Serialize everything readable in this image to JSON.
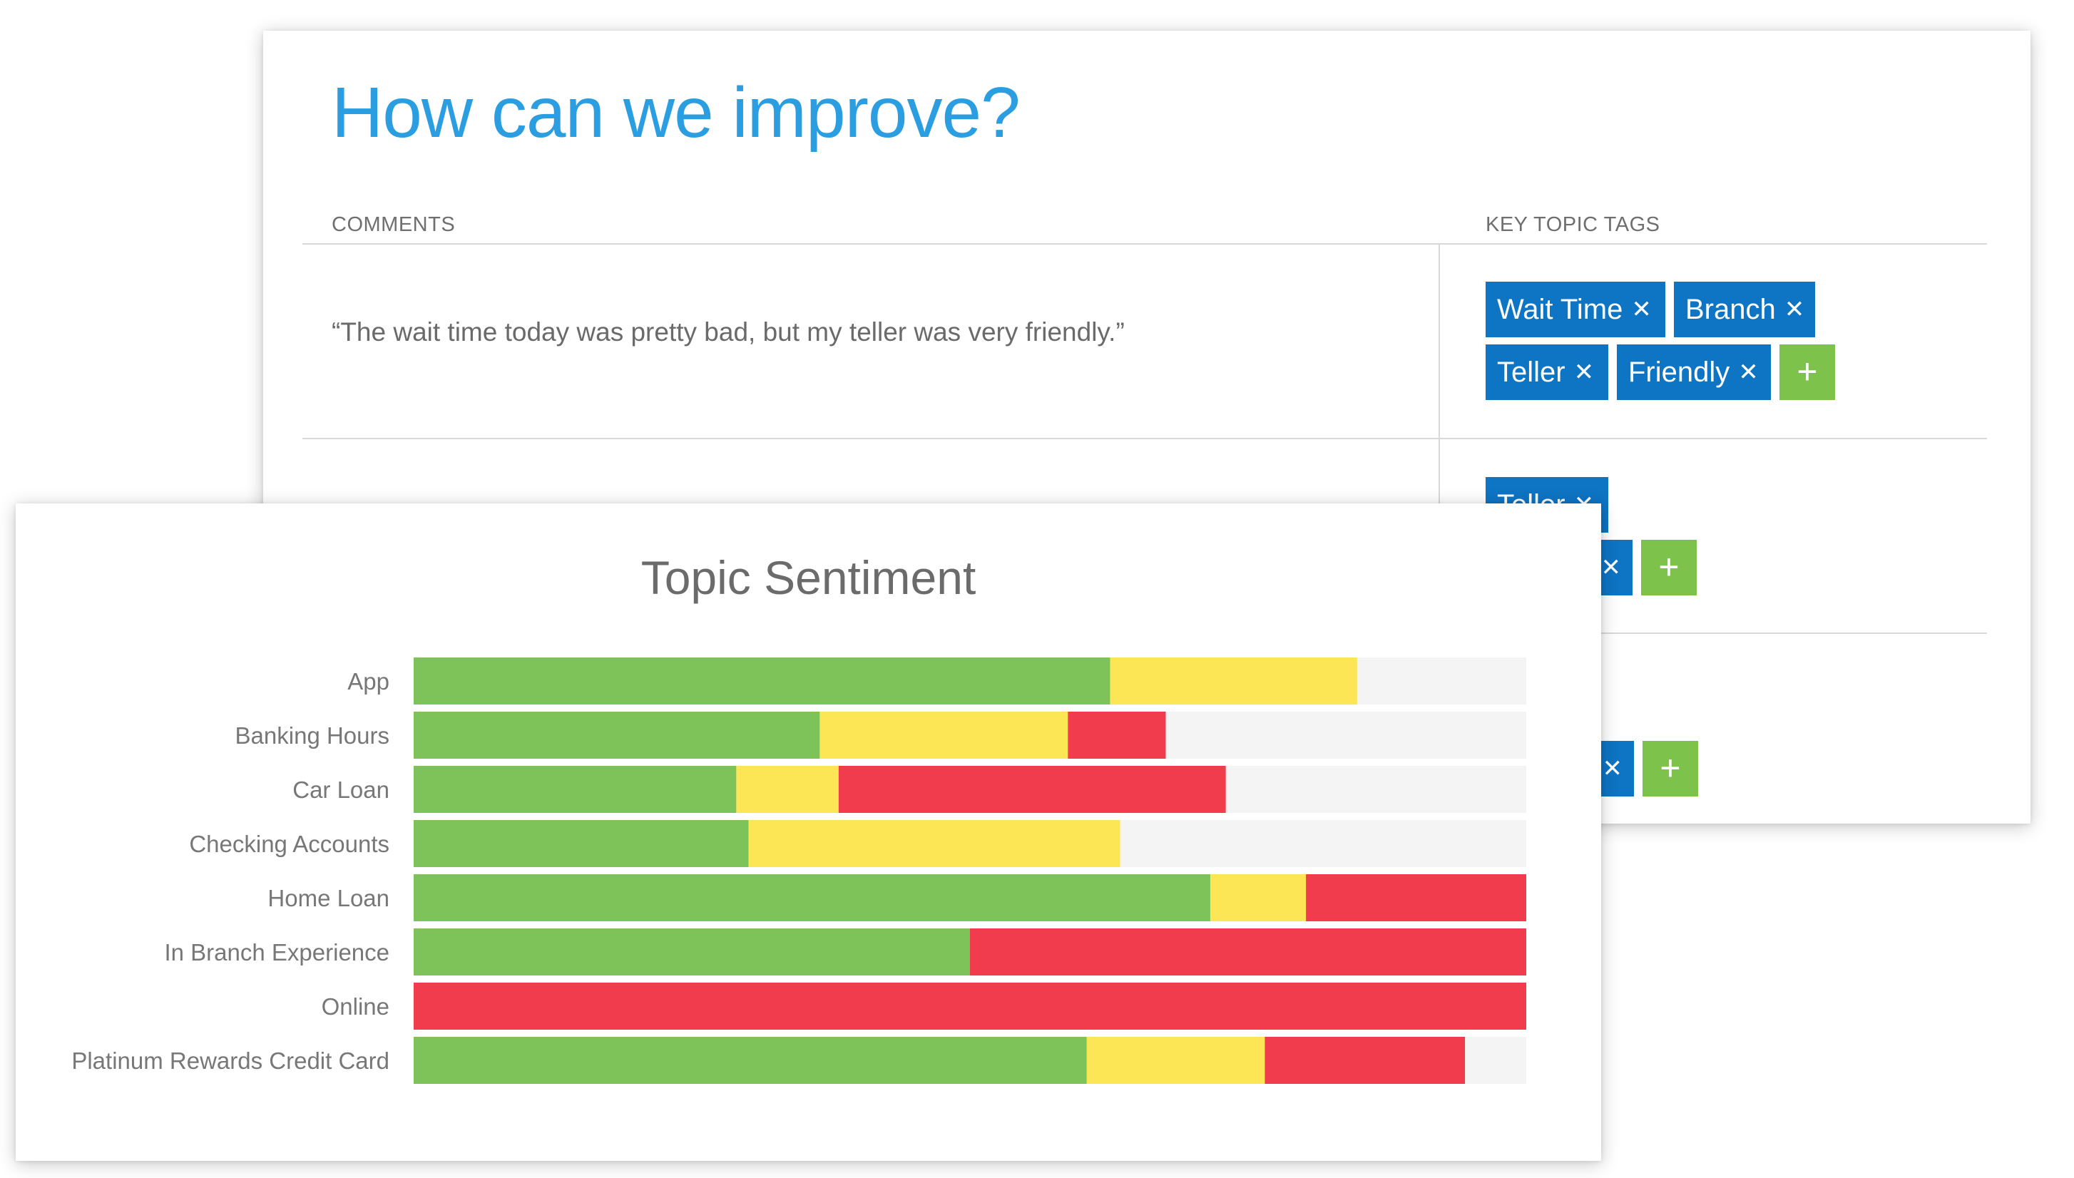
{
  "improve_card": {
    "title": "How can we improve?",
    "columns": {
      "comments": "COMMENTS",
      "tags": "KEY TOPIC TAGS"
    },
    "rows": [
      {
        "comment": "“The wait time today was pretty bad, but my teller was very friendly.”",
        "tags": [
          "Wait Time",
          "Branch",
          "Teller",
          "Friendly"
        ]
      },
      {
        "comment": "",
        "tags": [
          "Teller"
        ]
      },
      {
        "comment": "",
        "tags": []
      }
    ],
    "add_label": "+",
    "remove_glyph": "✕"
  },
  "colors": {
    "title_blue": "#2a9ee0",
    "tag_blue": "#0e74c4",
    "add_green": "#7dc24a",
    "positive": "#7dc35a",
    "neutral": "#fde655",
    "negative": "#f13c4d",
    "none": "#f3f4f3"
  },
  "chart_data": {
    "type": "bar",
    "orientation": "horizontal",
    "stacked": true,
    "title": "Topic Sentiment",
    "categories": [
      "App",
      "Banking Hours",
      "Car Loan",
      "Checking Accounts",
      "Home Loan",
      "In Branch Experience",
      "Online",
      "Platinum Rewards Credit Card"
    ],
    "series": [
      {
        "color": "#7dc35a",
        "values": [
          62.6,
          36.5,
          29.0,
          30.1,
          71.6,
          50.0,
          0.0,
          60.5
        ]
      },
      {
        "color": "#fde655",
        "values": [
          22.2,
          22.3,
          9.2,
          33.4,
          8.6,
          0.0,
          0.0,
          16.0
        ]
      },
      {
        "color": "#f13c4d",
        "values": [
          0.0,
          8.8,
          34.8,
          0.0,
          19.8,
          50.0,
          100.0,
          18.0
        ]
      },
      {
        "color": "#f3f4f3",
        "values": [
          15.2,
          32.4,
          27.0,
          36.5,
          0.0,
          0.0,
          0.0,
          5.5
        ]
      }
    ],
    "xlim": [
      0,
      100
    ],
    "grid": false,
    "legend": "none"
  }
}
